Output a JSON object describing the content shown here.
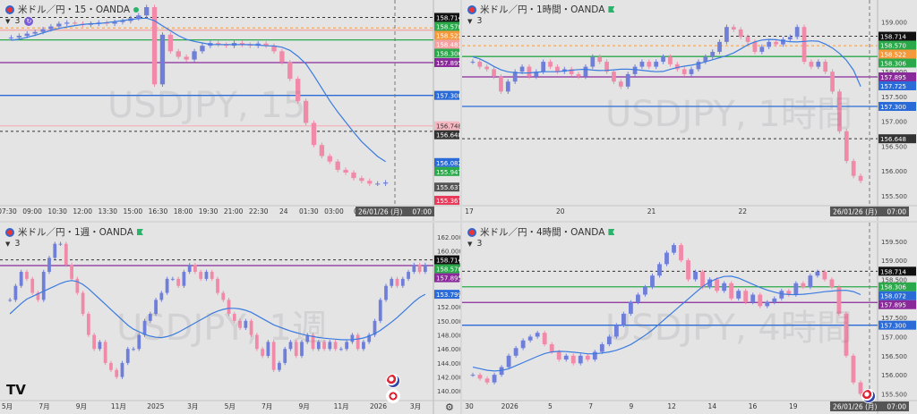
{
  "panels": [
    {
      "id": "tl",
      "title": "米ドル／円・15・OANDA",
      "indicator_count": "3",
      "watermark": "USDJPY, 15",
      "x_labels": [
        "07:30",
        "09:00",
        "10:30",
        "12:00",
        "13:30",
        "15:00",
        "16:30",
        "18:00",
        "19:30",
        "21:00",
        "22:30",
        "24",
        "01:30",
        "03:00",
        "05:"
      ],
      "date_badge": "26/01/26 (月)",
      "time_badge": "07:00",
      "price_labels": [
        {
          "text": "158.714",
          "bg": "#111111",
          "fg": "#ffffff"
        },
        {
          "text": "158.570",
          "bg": "#2aa84a",
          "fg": "#ffffff"
        },
        {
          "text": "158.522",
          "bg": "#f59a3c",
          "fg": "#ffffff"
        },
        {
          "text": "158.483",
          "bg": "#f5a0a0",
          "fg": "#ffffff"
        },
        {
          "text": "158.306",
          "bg": "#2aa84a",
          "fg": "#ffffff"
        },
        {
          "text": "157.895",
          "bg": "#8a2a9a",
          "fg": "#ffffff"
        },
        {
          "text": "157.300",
          "bg": "#2a6bd8",
          "fg": "#ffffff"
        },
        {
          "text": "156.748",
          "bg": "#f5b7c0",
          "fg": "#333333"
        },
        {
          "text": "156.648",
          "bg": "#333333",
          "fg": "#ffffff"
        },
        {
          "text": "156.082",
          "bg": "#2a6bd8",
          "fg": "#ffffff"
        },
        {
          "text": "155.947",
          "bg": "#2aa84a",
          "fg": "#ffffff"
        },
        {
          "text": "155.637",
          "bg": "#555555",
          "fg": "#ffffff"
        },
        {
          "text": "155.367",
          "bg": "#e83a5a",
          "fg": "#ffffff"
        }
      ]
    },
    {
      "id": "tr",
      "title": "米ドル／円・1時間・OANDA",
      "indicator_count": "3",
      "watermark": "USDJPY, 1時間",
      "x_labels": [
        "17",
        "20",
        "21",
        "22",
        "23"
      ],
      "date_badge": "26/01/26 (月)",
      "time_badge": "07:00",
      "tick_labels": [
        "159.000",
        "158.500",
        "158.000",
        "157.500",
        "157.000",
        "156.500",
        "156.000",
        "155.500"
      ],
      "price_labels": [
        {
          "text": "158.714",
          "bg": "#111111",
          "fg": "#ffffff"
        },
        {
          "text": "158.570",
          "bg": "#2aa84a",
          "fg": "#ffffff"
        },
        {
          "text": "158.522",
          "bg": "#f59a3c",
          "fg": "#ffffff"
        },
        {
          "text": "158.306",
          "bg": "#2aa84a",
          "fg": "#ffffff"
        },
        {
          "text": "157.895",
          "bg": "#8a2a9a",
          "fg": "#ffffff"
        },
        {
          "text": "157.725",
          "bg": "#2a6bd8",
          "fg": "#ffffff"
        },
        {
          "text": "157.300",
          "bg": "#2a6bd8",
          "fg": "#ffffff"
        },
        {
          "text": "156.648",
          "bg": "#333333",
          "fg": "#ffffff"
        }
      ]
    },
    {
      "id": "bl",
      "title": "米ドル／円・1週・OANDA",
      "indicator_count": "3",
      "watermark": "USDJPY, 1週",
      "x_labels": [
        "5月",
        "7月",
        "9月",
        "11月",
        "2025",
        "3月",
        "5月",
        "7月",
        "9月",
        "11月",
        "2026",
        "3月"
      ],
      "tick_labels": [
        "162.000",
        "160.000",
        "158.000",
        "156.000",
        "154.000",
        "152.000",
        "150.000",
        "148.000",
        "146.000",
        "144.000",
        "142.000",
        "140.000"
      ],
      "price_labels": [
        {
          "text": "158.714",
          "bg": "#111111",
          "fg": "#ffffff"
        },
        {
          "text": "158.570",
          "bg": "#2aa84a",
          "fg": "#ffffff"
        },
        {
          "text": "157.895",
          "bg": "#8a2a9a",
          "fg": "#ffffff"
        },
        {
          "text": "153.799",
          "bg": "#2a6bd8",
          "fg": "#ffffff"
        }
      ],
      "logo": "TV"
    },
    {
      "id": "br",
      "title": "米ドル／円・4時間・OANDA",
      "indicator_count": "3",
      "watermark": "USDJPY, 4時間",
      "x_labels": [
        "30",
        "2026",
        "5",
        "7",
        "9",
        "12",
        "14",
        "16",
        "19",
        "21"
      ],
      "date_badge": "26/01/26 (月)",
      "time_badge": "07:00",
      "tick_labels": [
        "159.500",
        "159.000",
        "158.500",
        "158.000",
        "157.500",
        "157.000",
        "156.500",
        "156.000",
        "155.500"
      ],
      "price_labels": [
        {
          "text": "158.714",
          "bg": "#111111",
          "fg": "#ffffff"
        },
        {
          "text": "158.306",
          "bg": "#2aa84a",
          "fg": "#ffffff"
        },
        {
          "text": "158.072",
          "bg": "#2a6bd8",
          "fg": "#ffffff"
        },
        {
          "text": "157.895",
          "bg": "#8a2a9a",
          "fg": "#ffffff"
        },
        {
          "text": "157.300",
          "bg": "#2a6bd8",
          "fg": "#ffffff"
        }
      ]
    }
  ],
  "chart_data": [
    {
      "type": "candlestick",
      "title": "米ドル／円・15・OANDA",
      "ylim": [
        155.3,
        158.9
      ],
      "ma_color": "#3a7be0",
      "up_color": "#6f7fd9",
      "down_color": "#f08aa8",
      "levels": [
        {
          "value": 158.714,
          "style": "dashed",
          "color": "#333333"
        },
        {
          "value": 158.522,
          "style": "dashed",
          "color": "#f59a3c"
        },
        {
          "value": 158.483,
          "style": "solid",
          "color": "#f5a0a0"
        },
        {
          "value": 158.306,
          "style": "solid",
          "color": "#2aa84a"
        },
        {
          "value": 157.895,
          "style": "solid",
          "color": "#8a2a9a"
        },
        {
          "value": 157.3,
          "style": "solid",
          "color": "#2a6bd8"
        },
        {
          "value": 156.748,
          "style": "solid",
          "color": "#f5b7c0"
        },
        {
          "value": 156.648,
          "style": "dashed",
          "color": "#333333"
        }
      ],
      "close_path": [
        158.35,
        158.38,
        158.42,
        158.45,
        158.5,
        158.55,
        158.6,
        158.62,
        158.6,
        158.58,
        158.6,
        158.62,
        158.6,
        158.63,
        158.65,
        158.7,
        158.75,
        158.9,
        157.5,
        158.4,
        158.1,
        158.0,
        157.95,
        158.1,
        158.2,
        158.25,
        158.22,
        158.2,
        158.25,
        158.22,
        158.2,
        158.24,
        158.2,
        158.1,
        157.9,
        157.6,
        157.2,
        156.8,
        156.4,
        156.2,
        156.1,
        155.95,
        155.9,
        155.8,
        155.75,
        155.7,
        155.7,
        155.72
      ],
      "ma_path": [
        158.3,
        158.32,
        158.36,
        158.4,
        158.45,
        158.5,
        158.53,
        158.56,
        158.58,
        158.6,
        158.6,
        158.62,
        158.64,
        158.66,
        158.68,
        158.7,
        158.7,
        158.6,
        158.5,
        158.4,
        158.32,
        158.28,
        158.25,
        158.22,
        158.22,
        158.22,
        158.22,
        158.22,
        158.22,
        158.2,
        158.2,
        158.18,
        158.12,
        158.0,
        157.85,
        157.6,
        157.35,
        157.1,
        156.9,
        156.7,
        156.5,
        156.35,
        156.2,
        156.1
      ]
    },
    {
      "type": "candlestick",
      "title": "米ドル／円・1時間・OANDA",
      "ylim": [
        155.3,
        159.3
      ],
      "levels": [
        {
          "value": 158.714,
          "style": "dashed",
          "color": "#333333"
        },
        {
          "value": 158.522,
          "style": "dashed",
          "color": "#f59a3c"
        },
        {
          "value": 158.306,
          "style": "solid",
          "color": "#2aa84a"
        },
        {
          "value": 157.895,
          "style": "solid",
          "color": "#8a2a9a"
        },
        {
          "value": 157.3,
          "style": "solid",
          "color": "#2a6bd8"
        },
        {
          "value": 156.648,
          "style": "dashed",
          "color": "#333333"
        }
      ],
      "close_path": [
        158.2,
        158.1,
        158.05,
        157.9,
        157.6,
        157.8,
        158.0,
        158.1,
        157.9,
        158.0,
        158.2,
        158.1,
        158.0,
        158.05,
        157.95,
        157.9,
        158.1,
        158.3,
        158.2,
        158.0,
        157.8,
        157.7,
        157.95,
        158.1,
        158.2,
        158.1,
        158.2,
        158.3,
        158.15,
        158.05,
        157.95,
        158.05,
        158.2,
        158.3,
        158.4,
        158.6,
        158.9,
        158.85,
        158.7,
        158.6,
        158.4,
        158.5,
        158.6,
        158.55,
        158.65,
        158.7,
        158.9,
        158.2,
        158.1,
        158.2,
        158.0,
        157.6,
        156.8,
        156.2,
        155.9,
        155.8
      ],
      "ma_path": [
        158.3,
        158.25,
        158.15,
        158.05,
        158.0,
        157.98,
        157.97,
        157.98,
        158.0,
        158.0,
        158.0,
        158.02,
        158.04,
        158.05,
        158.03,
        158.02,
        158.03,
        158.05,
        158.05,
        158.04,
        158.02,
        158.0,
        158.0,
        158.05,
        158.1,
        158.12,
        158.15,
        158.2,
        158.25,
        158.3,
        158.35,
        158.45,
        158.55,
        158.62,
        158.65,
        158.65,
        158.62,
        158.6,
        158.6,
        158.62,
        158.62,
        158.55,
        158.45,
        158.3,
        158.1,
        157.7
      ]
    },
    {
      "type": "candlestick",
      "title": "米ドル／円・1週・OANDA",
      "ylim": [
        138.5,
        163
      ],
      "levels": [
        {
          "value": 158.714,
          "style": "dashed",
          "color": "#333333"
        },
        {
          "value": 157.895,
          "style": "solid",
          "color": "#8a2a9a"
        }
      ],
      "close_path": [
        153,
        155,
        157,
        156,
        154,
        153,
        157,
        159,
        161,
        161,
        158,
        156,
        154,
        151,
        148,
        146,
        147,
        144,
        143,
        142,
        144,
        146,
        146,
        148,
        150,
        151,
        153,
        154,
        156,
        156,
        155,
        157,
        158,
        157,
        156,
        157,
        156,
        154,
        153,
        151,
        150,
        149,
        150,
        148,
        146,
        145,
        147,
        143,
        144,
        146,
        147,
        145,
        147,
        148,
        146,
        147,
        146,
        147,
        146,
        146,
        147,
        148,
        146,
        147,
        148,
        150,
        153,
        155,
        156,
        155,
        156,
        157,
        158,
        157,
        158
      ],
      "ma_path": [
        151,
        152,
        153,
        153.5,
        154,
        154.5,
        155,
        155.5,
        155.8,
        155.6,
        155,
        154,
        153,
        152,
        151,
        150,
        149,
        148.5,
        148,
        147.7,
        147.6,
        147.8,
        148.2,
        148.8,
        149.4,
        150,
        150.6,
        151.2,
        151.6,
        151.8,
        151.8,
        151.6,
        151.2,
        150.6,
        150,
        149.4,
        149,
        148.6,
        148.3,
        148,
        147.8,
        147.6,
        147.5,
        147.4,
        147.3,
        147.3,
        147.4,
        147.6,
        148,
        148.6,
        149.4,
        150.2,
        151.2,
        152.2,
        153.2,
        153.8
      ]
    },
    {
      "type": "candlestick",
      "title": "米ドル／円・4時間・OANDA",
      "ylim": [
        155.3,
        159.8
      ],
      "levels": [
        {
          "value": 158.714,
          "style": "dashed",
          "color": "#333333"
        },
        {
          "value": 158.306,
          "style": "solid",
          "color": "#2aa84a"
        },
        {
          "value": 157.895,
          "style": "solid",
          "color": "#8a2a9a"
        },
        {
          "value": 157.3,
          "style": "solid",
          "color": "#2a6bd8"
        }
      ],
      "close_path": [
        156.0,
        155.9,
        155.8,
        156.0,
        156.2,
        156.5,
        156.7,
        156.9,
        157.0,
        157.1,
        156.8,
        156.6,
        156.4,
        156.5,
        156.3,
        156.5,
        156.4,
        156.6,
        156.8,
        157.0,
        157.3,
        157.6,
        157.9,
        158.1,
        158.3,
        158.6,
        158.9,
        159.2,
        159.4,
        159.0,
        158.5,
        158.7,
        158.3,
        158.5,
        158.2,
        158.4,
        158.0,
        158.2,
        157.9,
        158.1,
        157.8,
        157.9,
        158.0,
        158.2,
        158.1,
        158.4,
        158.3,
        158.6,
        158.7,
        158.5,
        158.3,
        157.6,
        156.5,
        155.8,
        155.5
      ],
      "ma_path": [
        156.2,
        156.15,
        156.1,
        156.1,
        156.15,
        156.25,
        156.35,
        156.45,
        156.55,
        156.6,
        156.62,
        156.6,
        156.58,
        156.55,
        156.55,
        156.58,
        156.62,
        156.7,
        156.8,
        156.95,
        157.1,
        157.3,
        157.5,
        157.7,
        157.9,
        158.1,
        158.3,
        158.45,
        158.55,
        158.6,
        158.55,
        158.45,
        158.35,
        158.25,
        158.18,
        158.12,
        158.1,
        158.1,
        158.12,
        158.15,
        158.18,
        158.2,
        158.22,
        158.2,
        158.1
      ]
    }
  ]
}
